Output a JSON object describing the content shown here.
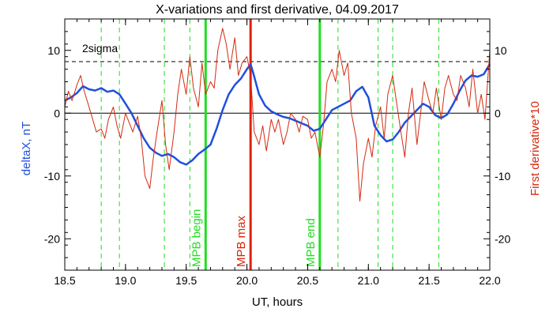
{
  "chart_data": {
    "type": "line",
    "title": "X-variations and first derivative, 04.09.2017",
    "xlabel": "UT, hours",
    "ylabel_left": "deltaX, nT",
    "ylabel_right": "First derivative*10",
    "xlim": [
      18.5,
      22.0
    ],
    "ylim": [
      -25,
      15
    ],
    "x_ticks": [
      18.5,
      19.0,
      19.5,
      20.0,
      20.5,
      21.0,
      21.5,
      22.0
    ],
    "x_tick_labels": [
      "18.5",
      "19.0",
      "19.5",
      "20.0",
      "20.5",
      "21.0",
      "21.5",
      "22.0"
    ],
    "y_ticks": [
      10,
      0,
      -10,
      -20
    ],
    "y_tick_labels_left": [
      "10",
      "0",
      "-10",
      "-20"
    ],
    "y_tick_labels_right": [
      "10",
      "0",
      "-10",
      "-20"
    ],
    "grid": false,
    "colors": {
      "deltax": "#1f4fdc",
      "derivative": "#d42a10",
      "mpb_lines": "#22dd22",
      "mpb_max": "#dd2200",
      "dashed_green": "#22dd22",
      "sigma_line": "#000000",
      "zero_line": "#000000",
      "left_label": "#1f4fdc",
      "right_label": "#d42a10"
    },
    "sigma_level": 8.2,
    "sigma_label": "2sigma",
    "zero_level": 0,
    "series": [
      {
        "key": "deltax",
        "x": [
          18.5,
          18.55,
          18.6,
          18.65,
          18.7,
          18.75,
          18.8,
          18.85,
          18.9,
          18.95,
          19.0,
          19.05,
          19.1,
          19.15,
          19.2,
          19.25,
          19.3,
          19.35,
          19.4,
          19.45,
          19.5,
          19.55,
          19.6,
          19.65,
          19.7,
          19.75,
          19.8,
          19.85,
          19.9,
          19.95,
          20.0,
          20.03,
          20.05,
          20.1,
          20.15,
          20.2,
          20.25,
          20.3,
          20.35,
          20.4,
          20.45,
          20.5,
          20.55,
          20.6,
          20.65,
          20.7,
          20.75,
          20.8,
          20.85,
          20.9,
          20.95,
          21.0,
          21.05,
          21.1,
          21.15,
          21.2,
          21.25,
          21.3,
          21.35,
          21.4,
          21.45,
          21.5,
          21.55,
          21.6,
          21.65,
          21.7,
          21.75,
          21.8,
          21.85,
          21.9,
          21.95,
          22.0
        ],
        "y": [
          2.0,
          2.5,
          3.2,
          4.3,
          3.8,
          3.6,
          4.0,
          3.4,
          3.6,
          3.0,
          1.5,
          0.0,
          -2.0,
          -4.0,
          -5.5,
          -6.3,
          -6.8,
          -6.5,
          -7.0,
          -7.8,
          -8.2,
          -7.5,
          -6.5,
          -5.8,
          -5.0,
          -2.5,
          0.5,
          3.0,
          4.5,
          5.5,
          7.0,
          7.8,
          6.5,
          3.0,
          1.2,
          0.3,
          -0.2,
          -0.6,
          -0.8,
          -1.2,
          -1.6,
          -2.0,
          -2.8,
          -2.5,
          -1.0,
          0.5,
          1.0,
          1.5,
          2.0,
          3.5,
          4.2,
          2.5,
          -2.0,
          -3.5,
          -4.5,
          -4.2,
          -3.0,
          -1.5,
          -0.5,
          0.5,
          1.5,
          1.0,
          -0.3,
          -0.8,
          -0.2,
          1.5,
          3.5,
          5.2,
          6.0,
          5.8,
          6.2,
          7.8
        ]
      },
      {
        "key": "derivative",
        "x": [
          18.5,
          18.53,
          18.56,
          18.6,
          18.63,
          18.66,
          18.7,
          18.73,
          18.76,
          18.8,
          18.83,
          18.86,
          18.9,
          18.93,
          18.96,
          19.0,
          19.03,
          19.06,
          19.1,
          19.13,
          19.16,
          19.2,
          19.23,
          19.26,
          19.3,
          19.33,
          19.36,
          19.4,
          19.43,
          19.46,
          19.5,
          19.53,
          19.56,
          19.6,
          19.63,
          19.66,
          19.7,
          19.73,
          19.76,
          19.8,
          19.83,
          19.86,
          19.9,
          19.93,
          19.96,
          20.0,
          20.03,
          20.06,
          20.1,
          20.13,
          20.16,
          20.2,
          20.23,
          20.26,
          20.3,
          20.33,
          20.36,
          20.4,
          20.43,
          20.46,
          20.5,
          20.53,
          20.56,
          20.6,
          20.63,
          20.66,
          20.7,
          20.73,
          20.76,
          20.8,
          20.83,
          20.86,
          20.9,
          20.93,
          20.96,
          21.0,
          21.03,
          21.06,
          21.1,
          21.13,
          21.16,
          21.2,
          21.23,
          21.26,
          21.3,
          21.33,
          21.36,
          21.4,
          21.43,
          21.46,
          21.5,
          21.53,
          21.56,
          21.6,
          21.63,
          21.66,
          21.7,
          21.73,
          21.76,
          21.8,
          21.83,
          21.86,
          21.9,
          21.93,
          21.96,
          22.0
        ],
        "y": [
          1.0,
          3.5,
          2.0,
          4.5,
          6.0,
          3.5,
          1.0,
          -1.0,
          -3.0,
          -2.5,
          -4.0,
          -1.0,
          1.0,
          -2.0,
          -4.0,
          0.0,
          -1.5,
          -3.0,
          -0.5,
          -4.0,
          -10.0,
          -12.0,
          -7.0,
          -3.0,
          2.0,
          -5.0,
          -9.0,
          -3.0,
          3.0,
          7.0,
          3.0,
          9.0,
          4.0,
          1.0,
          8.0,
          3.0,
          5.0,
          4.0,
          10.0,
          13.5,
          11.0,
          7.0,
          12.0,
          6.0,
          8.0,
          9.0,
          6.0,
          -3.0,
          -5.0,
          -2.0,
          -6.0,
          -1.0,
          -3.0,
          -1.0,
          -5.0,
          -3.0,
          0.0,
          -1.0,
          -3.0,
          -0.5,
          -1.0,
          -4.0,
          -3.0,
          -7.0,
          -2.0,
          5.0,
          7.0,
          5.0,
          10.0,
          6.0,
          8.0,
          0.0,
          -4.0,
          -14.0,
          -8.0,
          -4.0,
          -7.0,
          -2.0,
          1.0,
          -4.0,
          3.0,
          6.0,
          2.0,
          -2.0,
          -7.0,
          0.0,
          4.0,
          -5.0,
          0.0,
          5.0,
          2.0,
          0.0,
          4.0,
          -1.0,
          4.0,
          6.0,
          3.0,
          2.0,
          6.0,
          4.0,
          1.0,
          7.0,
          0.0,
          3.0,
          -1.0,
          10.0
        ]
      }
    ],
    "vertical_markers": [
      {
        "x": 19.66,
        "label": "MPB begin",
        "kind": "solid-green"
      },
      {
        "x": 20.03,
        "label": "MPB max",
        "kind": "solid-red"
      },
      {
        "x": 20.6,
        "label": "MPB end",
        "kind": "solid-green"
      }
    ],
    "dashed_markers_x": [
      18.8,
      18.95,
      19.32,
      19.53,
      20.75,
      21.08,
      21.2,
      21.58
    ]
  }
}
